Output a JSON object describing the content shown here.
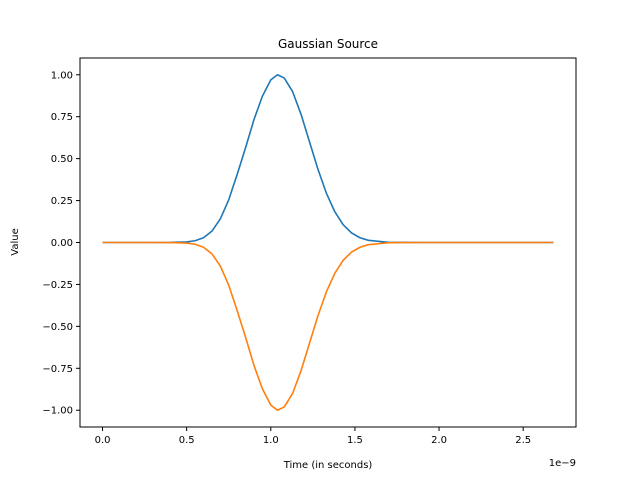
{
  "chart_data": {
    "type": "line",
    "title": "Gaussian Source",
    "xlabel": "Time (in seconds)",
    "ylabel": "Value",
    "x_offset_label": "1e−9",
    "xlim": [
      -1.34e-10,
      2.814e-09
    ],
    "ylim": [
      -1.1,
      1.1
    ],
    "grid": false,
    "x_ticks": [
      {
        "value": 0.0,
        "label": "0.0"
      },
      {
        "value": 5e-10,
        "label": "0.5"
      },
      {
        "value": 1e-09,
        "label": "1.0"
      },
      {
        "value": 1.5e-09,
        "label": "1.5"
      },
      {
        "value": 2e-09,
        "label": "2.0"
      },
      {
        "value": 2.5e-09,
        "label": "2.5"
      }
    ],
    "y_ticks": [
      {
        "value": 1.0,
        "label": "1.00"
      },
      {
        "value": 0.75,
        "label": "0.75"
      },
      {
        "value": 0.5,
        "label": "0.50"
      },
      {
        "value": 0.25,
        "label": "0.25"
      },
      {
        "value": 0.0,
        "label": "0.00"
      },
      {
        "value": -0.25,
        "label": "−0.25"
      },
      {
        "value": -0.5,
        "label": "−0.50"
      },
      {
        "value": -0.75,
        "label": "−0.75"
      },
      {
        "value": -1.0,
        "label": "−1.00"
      }
    ],
    "x": [
      0.0,
      1e-10,
      2e-10,
      3e-10,
      4e-10,
      5e-10,
      5.5e-10,
      6e-10,
      6.5e-10,
      7e-10,
      7.5e-10,
      8e-10,
      8.5e-10,
      9e-10,
      9.5e-10,
      1e-09,
      1.04e-09,
      1.08e-09,
      1.13e-09,
      1.18e-09,
      1.23e-09,
      1.28e-09,
      1.33e-09,
      1.38e-09,
      1.43e-09,
      1.48e-09,
      1.53e-09,
      1.58e-09,
      1.7e-09,
      1.9e-09,
      2.1e-09,
      2.3e-09,
      2.5e-09,
      2.68e-09
    ],
    "series": [
      {
        "color": "#1f77b4",
        "values": [
          0.0,
          0.0,
          0.0,
          0.0,
          0.0003,
          0.0034,
          0.0105,
          0.0285,
          0.0676,
          0.1403,
          0.2548,
          0.4052,
          0.5647,
          0.7328,
          0.8722,
          0.9693,
          1.0,
          0.9802,
          0.8989,
          0.7636,
          0.6005,
          0.4372,
          0.2949,
          0.1841,
          0.1065,
          0.0571,
          0.0283,
          0.0131,
          0.0012,
          0.0,
          0.0,
          0.0,
          0.0,
          0.0
        ]
      },
      {
        "color": "#ff7f0e",
        "values": [
          0.0,
          0.0,
          0.0,
          0.0,
          -0.0003,
          -0.0034,
          -0.0105,
          -0.0285,
          -0.0676,
          -0.1403,
          -0.2548,
          -0.4052,
          -0.5647,
          -0.7328,
          -0.8722,
          -0.9693,
          -1.0,
          -0.9802,
          -0.8989,
          -0.7636,
          -0.6005,
          -0.4372,
          -0.2949,
          -0.1841,
          -0.1065,
          -0.0571,
          -0.0283,
          -0.0131,
          -0.0012,
          0.0,
          0.0,
          0.0,
          0.0,
          0.0
        ]
      }
    ]
  }
}
